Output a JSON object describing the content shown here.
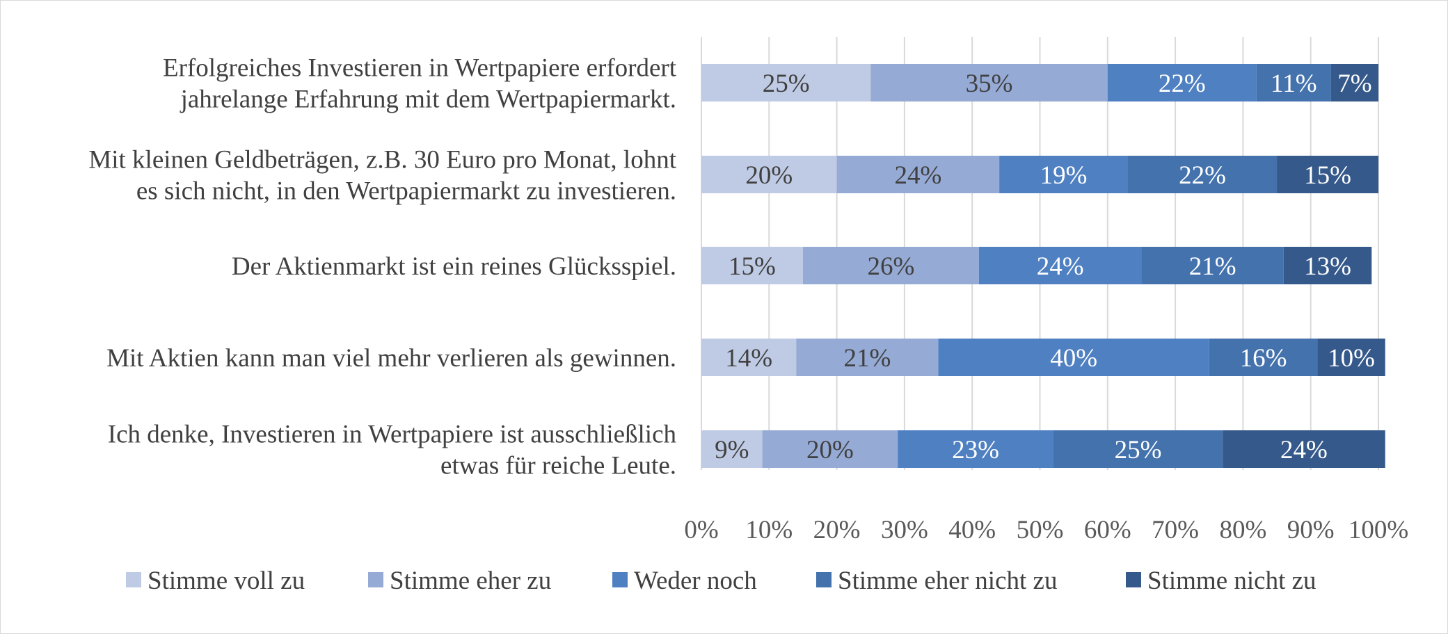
{
  "chart_data": {
    "type": "bar",
    "orientation": "horizontal",
    "stacked": "percent",
    "title": "",
    "xlabel": "",
    "ylabel": "",
    "xlim": [
      0,
      100
    ],
    "x_ticks": [
      "0%",
      "10%",
      "20%",
      "30%",
      "40%",
      "50%",
      "60%",
      "70%",
      "80%",
      "90%",
      "100%"
    ],
    "grid": "vertical",
    "legend_position": "bottom",
    "categories": [
      [
        "Erfolgreiches Investieren in Wertpapiere erfordert",
        "jahrelange Erfahrung mit dem Wertpapiermarkt."
      ],
      [
        "Mit kleinen Geldbeträgen, z.B. 30 Euro pro Monat, lohnt",
        "es sich nicht, in den Wertpapiermarkt zu investieren."
      ],
      [
        "Der Aktienmarkt ist ein reines Glücksspiel."
      ],
      [
        "Mit Aktien kann man viel mehr verlieren als gewinnen."
      ],
      [
        "Ich denke, Investieren in Wertpapiere ist ausschließlich",
        "etwas für reiche Leute."
      ]
    ],
    "series": [
      {
        "name": "Stimme voll zu",
        "color": "#bfcbe4",
        "label_color": "#404040",
        "values": [
          25,
          20,
          15,
          14,
          9
        ],
        "labels": [
          "25%",
          "20%",
          "15%",
          "14%",
          "9%"
        ]
      },
      {
        "name": "Stimme eher zu",
        "color": "#95aad4",
        "label_color": "#404040",
        "values": [
          35,
          24,
          26,
          21,
          20
        ],
        "labels": [
          "35%",
          "24%",
          "26%",
          "21%",
          "20%"
        ]
      },
      {
        "name": "Weder noch",
        "color": "#4e80c2",
        "label_color": "#ffffff",
        "values": [
          22,
          19,
          24,
          40,
          23
        ],
        "labels": [
          "22%",
          "19%",
          "24%",
          "40%",
          "23%"
        ]
      },
      {
        "name": "Stimme eher nicht zu",
        "color": "#4472ad",
        "label_color": "#ffffff",
        "values": [
          11,
          22,
          21,
          16,
          25
        ],
        "labels": [
          "11%",
          "22%",
          "21%",
          "16%",
          "25%"
        ]
      },
      {
        "name": "Stimme nicht zu",
        "color": "#35598a",
        "label_color": "#ffffff",
        "values": [
          7,
          15,
          13,
          10,
          24
        ],
        "labels": [
          "7%",
          "15%",
          "13%",
          "10%",
          "24%"
        ]
      }
    ]
  }
}
